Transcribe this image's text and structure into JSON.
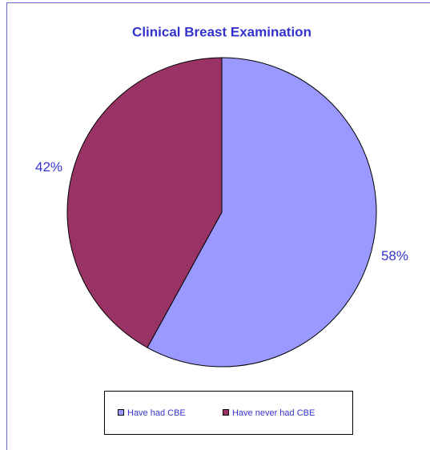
{
  "chart_data": {
    "type": "pie",
    "title": "Clinical Breast Examination",
    "categories": [
      "Have had CBE",
      "Have never had CBE"
    ],
    "values": [
      58,
      42
    ],
    "value_labels": [
      "58%",
      "42%"
    ],
    "colors": [
      "#9999ff",
      "#993366"
    ]
  }
}
